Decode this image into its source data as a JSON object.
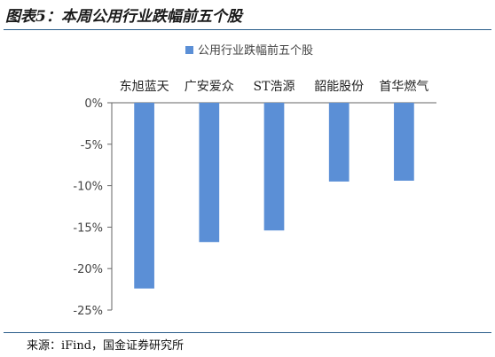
{
  "figure": {
    "title": "图表5：本周公用行业跌幅前五个股",
    "source": "来源：iFind，国金证券研究所"
  },
  "chart_data": {
    "type": "bar",
    "title": "",
    "categories": [
      "东旭蓝天",
      "广安爱众",
      "ST浩源",
      "韶能股份",
      "首华燃气"
    ],
    "series": [
      {
        "name": "公用行业跌幅前五个股",
        "values": [
          -22.4,
          -16.8,
          -15.4,
          -9.5,
          -9.4
        ]
      }
    ],
    "yticks": [
      "0%",
      "-5%",
      "-10%",
      "-15%",
      "-20%",
      "-25%"
    ],
    "ytick_values": [
      0,
      -5,
      -10,
      -15,
      -20,
      -25
    ],
    "ylim": [
      -25,
      0
    ],
    "xlabel": "",
    "ylabel": "",
    "grid": false,
    "legend_position": "top-center",
    "colors": {
      "bar": "#5b8fd6",
      "axis": "#666666"
    }
  }
}
